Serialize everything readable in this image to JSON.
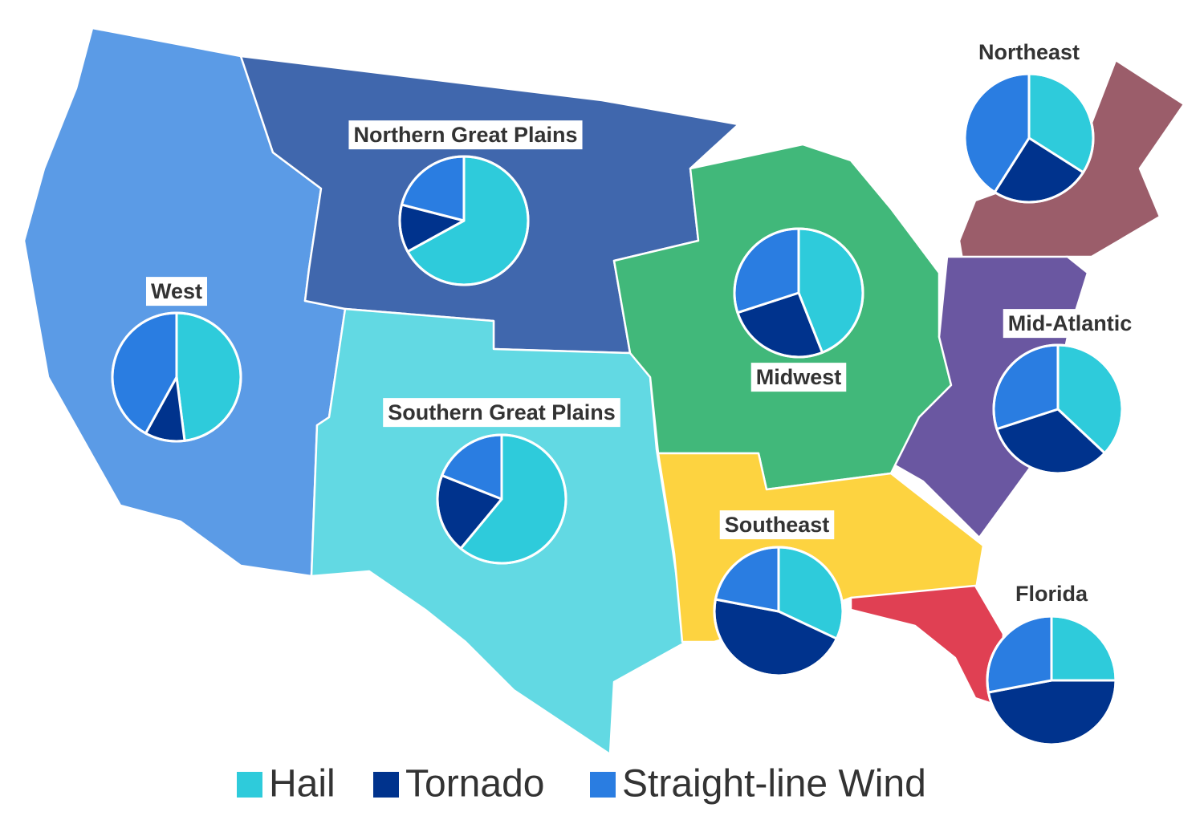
{
  "chart_data": {
    "type": "pie",
    "categories": [
      "Hail",
      "Tornado",
      "Straight-line Wind"
    ],
    "colors": [
      "#2ecbdb",
      "#00338d",
      "#2a7de1"
    ],
    "charts": [
      {
        "title": "West",
        "values": [
          48,
          10,
          42
        ]
      },
      {
        "title": "Northern Great Plains",
        "values": [
          67,
          12,
          21
        ]
      },
      {
        "title": "Southern Great Plains",
        "values": [
          61,
          20,
          19
        ]
      },
      {
        "title": "Midwest",
        "values": [
          44,
          26,
          30
        ]
      },
      {
        "title": "Northeast",
        "values": [
          34,
          25,
          41
        ]
      },
      {
        "title": "Mid-Atlantic",
        "values": [
          37,
          33,
          30
        ]
      },
      {
        "title": "Southeast",
        "values": [
          32,
          46,
          22
        ]
      },
      {
        "title": "Florida",
        "values": [
          25,
          47,
          28
        ]
      }
    ]
  }
}
